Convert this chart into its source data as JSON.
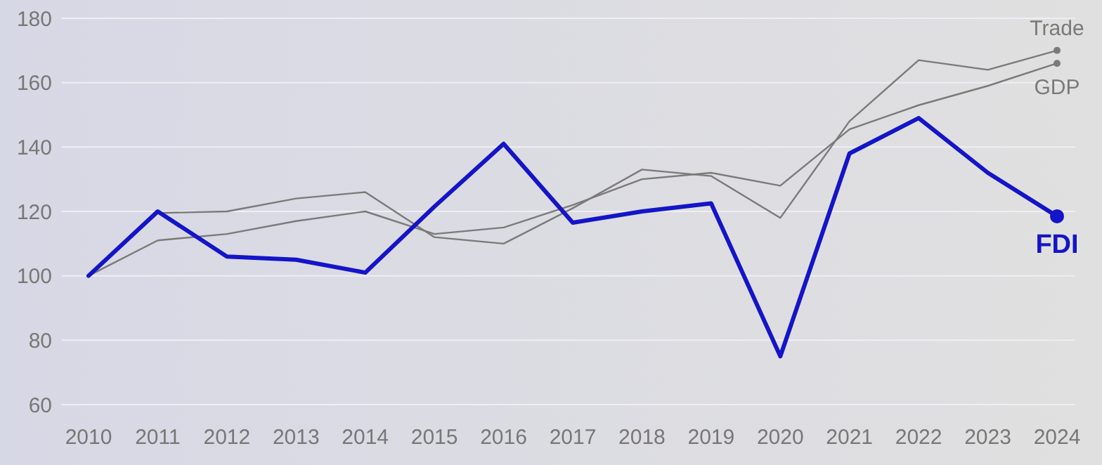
{
  "chart_data": {
    "type": "line",
    "categories": [
      "2010",
      "2011",
      "2012",
      "2013",
      "2014",
      "2015",
      "2016",
      "2017",
      "2018",
      "2019",
      "2020",
      "2021",
      "2022",
      "2023",
      "2024"
    ],
    "series": [
      {
        "name": "Trade",
        "color": "#7a7a7a",
        "values": [
          100,
          119.5,
          120,
          124,
          126,
          112,
          110,
          121,
          133,
          131,
          118,
          148,
          167,
          164,
          170
        ]
      },
      {
        "name": "GDP",
        "color": "#7a7a7a",
        "values": [
          100,
          111,
          113,
          117,
          120,
          113,
          115,
          122,
          130,
          132,
          128,
          145.5,
          153,
          159,
          166
        ]
      },
      {
        "name": "FDI",
        "color": "#1414c8",
        "values": [
          100,
          120,
          106,
          105,
          101,
          121.5,
          141,
          116.5,
          120,
          122.5,
          75,
          138,
          149,
          132,
          118.5
        ]
      }
    ],
    "ylim": [
      60,
      180
    ],
    "yticks": [
      60,
      80,
      100,
      120,
      140,
      160,
      180
    ],
    "grid": "y"
  }
}
